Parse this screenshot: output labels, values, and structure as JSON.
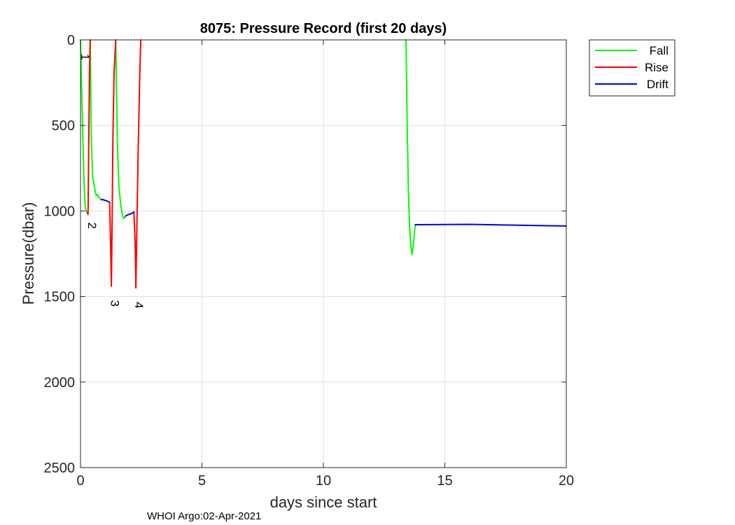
{
  "chart_data": {
    "type": "line",
    "title": "8075: Pressure Record (first 20 days)",
    "xlabel": "days since start",
    "ylabel": "Pressure(dbar)",
    "xlim": [
      0,
      20
    ],
    "ylim": [
      0,
      2500
    ],
    "y_reversed": true,
    "grid": true,
    "xticks": [
      0,
      5,
      10,
      15,
      20
    ],
    "yticks": [
      0,
      500,
      1000,
      1500,
      2000,
      2500
    ],
    "legend_position": "outside-top-right",
    "series": [
      {
        "name": "Fall",
        "color": "#00ff00",
        "segments": [
          [
            [
              0.0,
              0
            ],
            [
              0.05,
              300
            ],
            [
              0.1,
              600
            ],
            [
              0.15,
              850
            ],
            [
              0.2,
              980
            ],
            [
              0.25,
              1005
            ],
            [
              0.28,
              1010
            ]
          ],
          [
            [
              0.4,
              0
            ],
            [
              0.42,
              300
            ],
            [
              0.45,
              600
            ],
            [
              0.5,
              800
            ],
            [
              0.6,
              880
            ],
            [
              0.65,
              910
            ],
            [
              0.7,
              905
            ],
            [
              0.75,
              920
            ],
            [
              0.85,
              935
            ]
          ],
          [
            [
              1.45,
              0
            ],
            [
              1.48,
              300
            ],
            [
              1.52,
              600
            ],
            [
              1.58,
              850
            ],
            [
              1.65,
              960
            ],
            [
              1.72,
              1025
            ],
            [
              1.78,
              1045
            ],
            [
              1.85,
              1030
            ]
          ],
          [
            [
              13.4,
              0
            ],
            [
              13.45,
              500
            ],
            [
              13.5,
              900
            ],
            [
              13.55,
              1100
            ],
            [
              13.6,
              1200
            ],
            [
              13.65,
              1255
            ],
            [
              13.7,
              1200
            ],
            [
              13.78,
              1080
            ]
          ]
        ]
      },
      {
        "name": "Rise",
        "color": "#ff0000",
        "segments": [
          [
            [
              0.28,
              1010
            ],
            [
              0.31,
              1020
            ],
            [
              0.34,
              600
            ],
            [
              0.37,
              200
            ],
            [
              0.4,
              0
            ]
          ],
          [
            [
              1.2,
              950
            ],
            [
              1.24,
              1200
            ],
            [
              1.27,
              1440
            ],
            [
              1.3,
              1100
            ],
            [
              1.33,
              600
            ],
            [
              1.38,
              200
            ],
            [
              1.45,
              0
            ]
          ],
          [
            [
              2.2,
              1005
            ],
            [
              2.25,
              1200
            ],
            [
              2.28,
              1450
            ],
            [
              2.32,
              1100
            ],
            [
              2.38,
              600
            ],
            [
              2.44,
              200
            ],
            [
              2.48,
              0
            ]
          ]
        ]
      },
      {
        "name": "Drift",
        "color": "#0000ee",
        "segments": [
          [
            [
              0.85,
              935
            ],
            [
              0.9,
              932
            ],
            [
              1.0,
              938
            ],
            [
              1.1,
              942
            ],
            [
              1.2,
              950
            ]
          ],
          [
            [
              1.85,
              1030
            ],
            [
              1.95,
              1022
            ],
            [
              2.05,
              1018
            ],
            [
              2.15,
              1012
            ],
            [
              2.2,
              1005
            ]
          ],
          [
            [
              13.78,
              1080
            ],
            [
              16.0,
              1078
            ],
            [
              20.0,
              1088
            ]
          ]
        ]
      }
    ],
    "annotations": [
      {
        "text": "1",
        "x": 0.03,
        "y": 100
      },
      {
        "text": "2",
        "x": 0.32,
        "y": 1085
      },
      {
        "text": "3",
        "x": 1.25,
        "y": 1540
      },
      {
        "text": "4",
        "x": 2.25,
        "y": 1550
      }
    ]
  },
  "footer": "WHOI Argo:02-Apr-2021"
}
